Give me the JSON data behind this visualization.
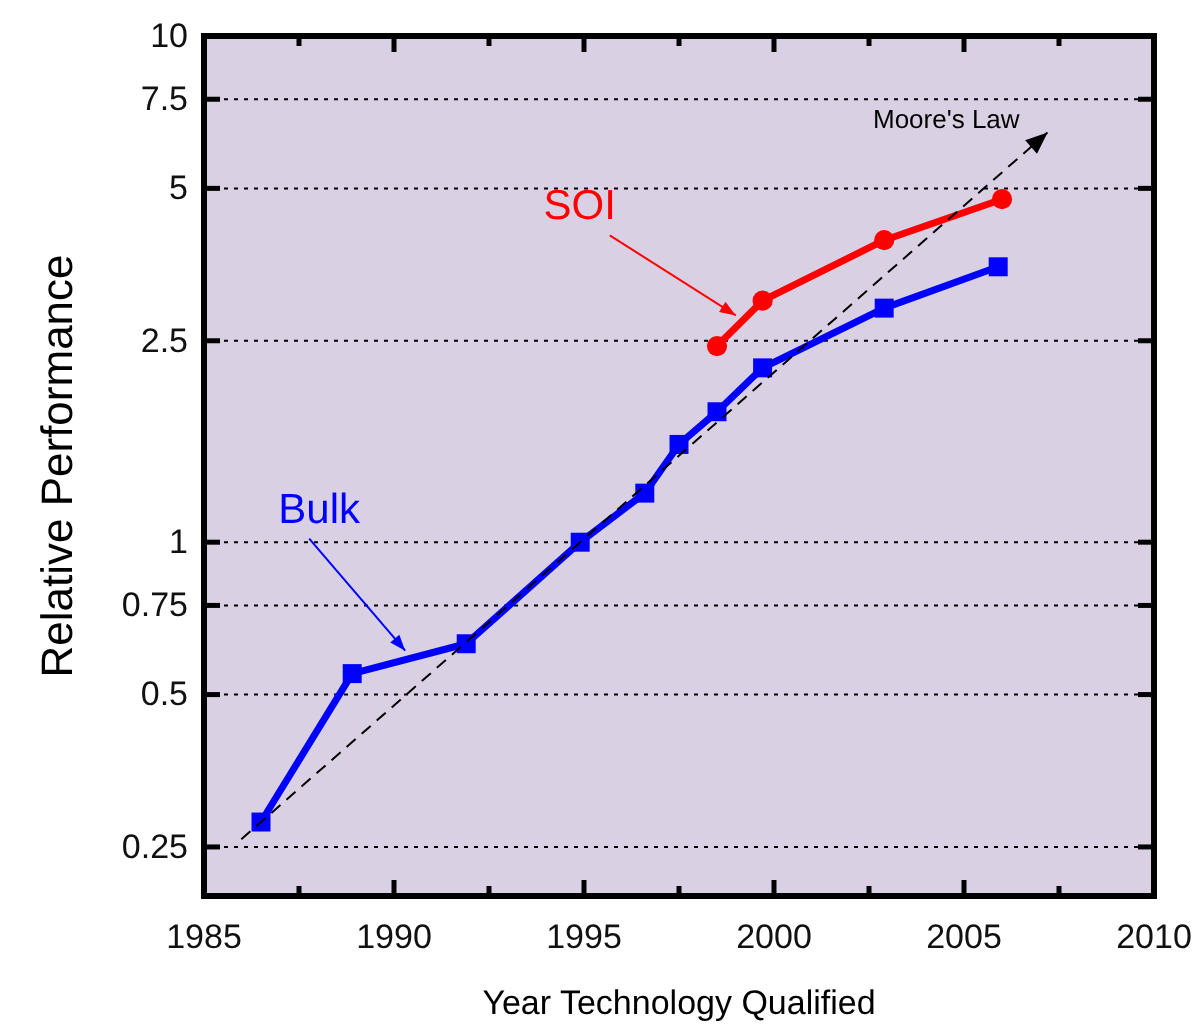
{
  "chart_data": {
    "type": "line",
    "xlabel": "Year Technology Qualified",
    "ylabel": "Relative Performance",
    "log": "y",
    "grid": "y",
    "legend": false,
    "xlim": [
      1985,
      2010
    ],
    "xticks": [
      1985,
      {
        "value": 1987.5,
        "label": null
      },
      1990,
      {
        "value": 1992.5,
        "label": null
      },
      1995,
      {
        "value": 1997.5,
        "label": null
      },
      2000,
      {
        "value": 2002.5,
        "label": null
      },
      2005,
      {
        "value": 2007.5,
        "label": null
      },
      2010
    ],
    "ylim": [
      0.2,
      10
    ],
    "yticks": [
      0.25,
      0.5,
      0.75,
      1,
      2.5,
      5,
      7.5,
      10
    ],
    "series": [
      {
        "name": "Bulk",
        "color": "#0000ff",
        "marker": "square",
        "x": [
          1986.5,
          1988.9,
          1991.9,
          1994.9,
          1996.6,
          1997.5,
          1998.5,
          1999.7,
          2002.9,
          2005.9
        ],
        "values": [
          0.28,
          0.55,
          0.63,
          1.0,
          1.25,
          1.56,
          1.81,
          2.21,
          2.9,
          3.5
        ]
      },
      {
        "name": "SOI",
        "color": "#ff0000",
        "marker": "circle",
        "x": [
          1998.5,
          1999.7,
          2002.9,
          2006.0
        ],
        "values": [
          2.44,
          3.0,
          3.95,
          4.76
        ]
      }
    ],
    "annotations": [
      "Moore's Law"
    ]
  }
}
